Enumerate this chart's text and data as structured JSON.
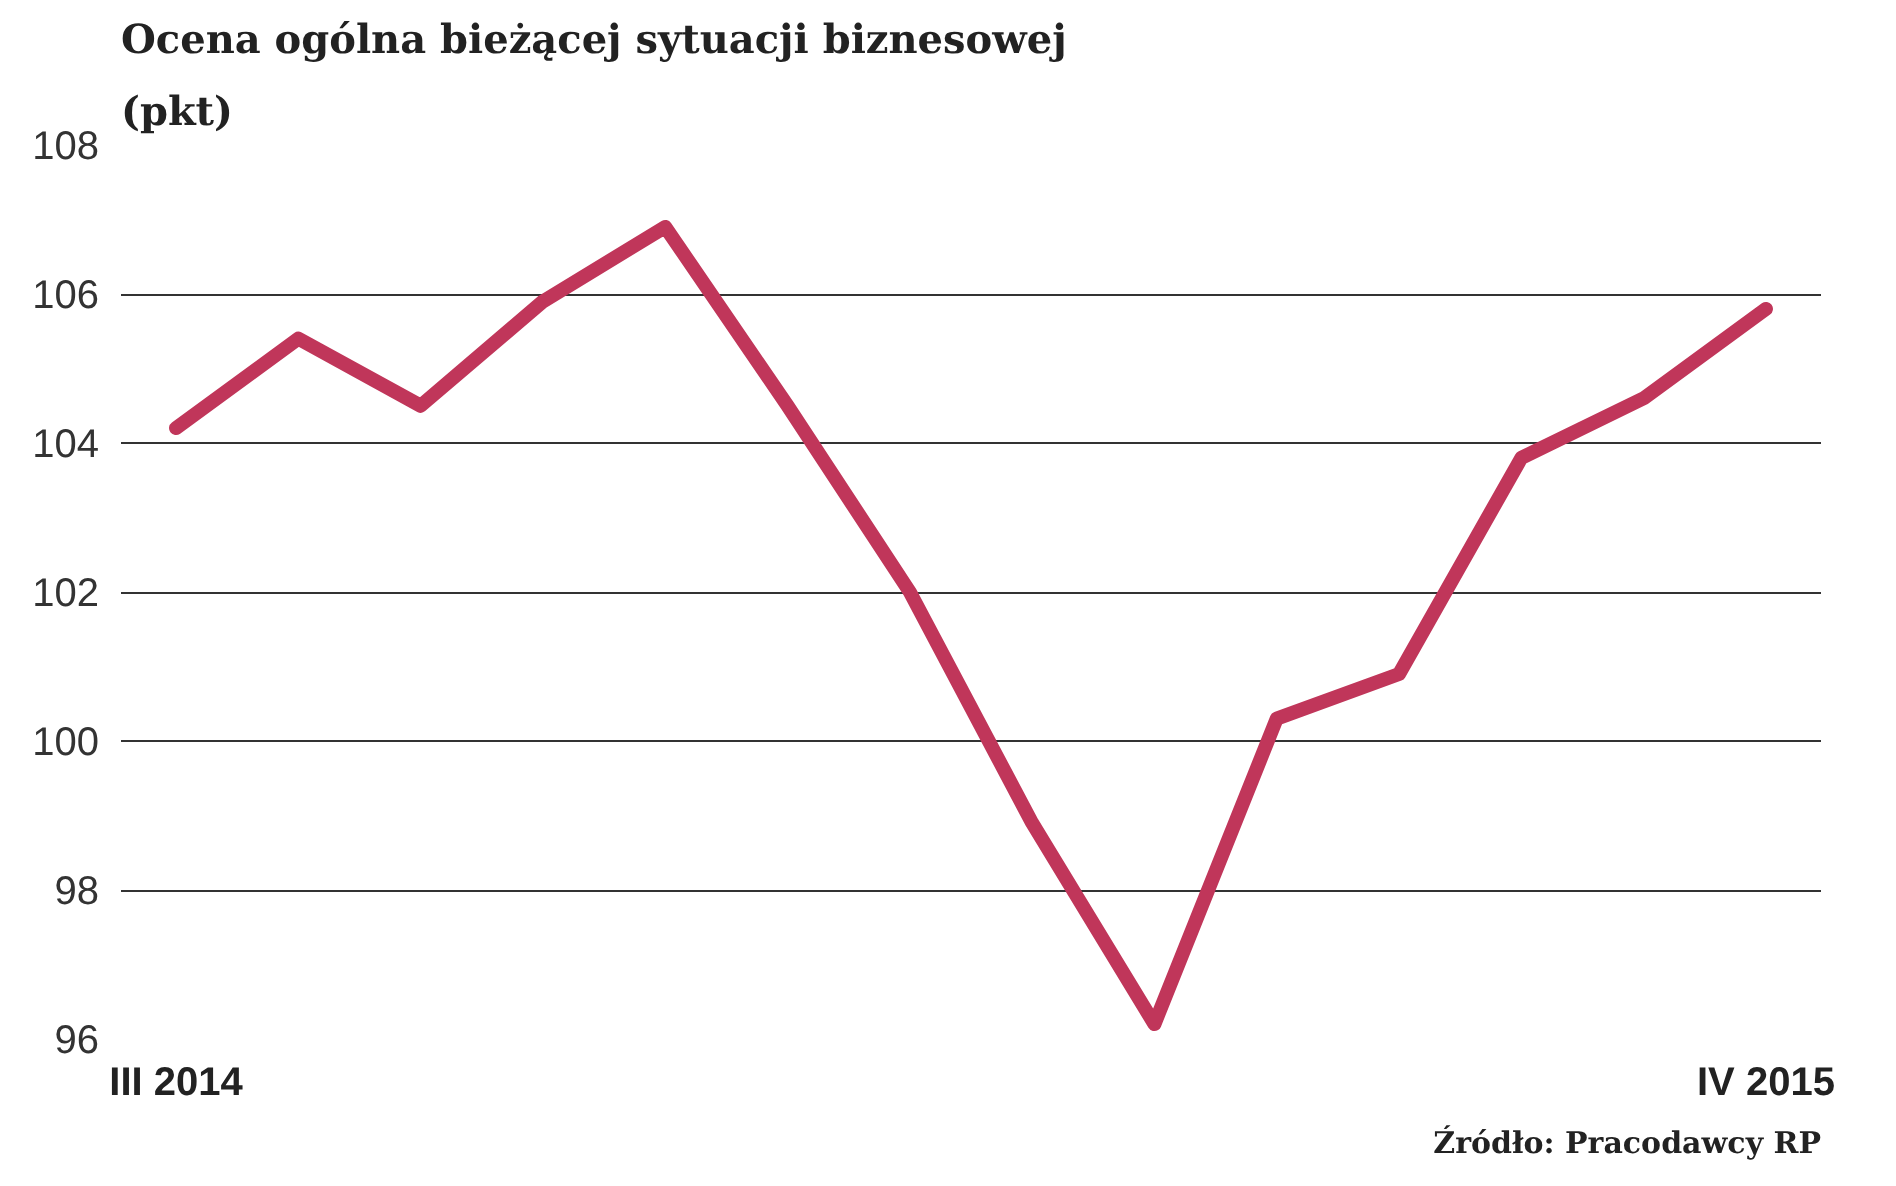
{
  "chart_data": {
    "type": "line",
    "title": "Ocena ogólna bieżącej sytuacji biznesowej",
    "subtitle": "(pkt)",
    "categories": [
      "III 2014",
      null,
      null,
      null,
      null,
      null,
      null,
      null,
      null,
      null,
      null,
      null,
      null,
      "IV 2015"
    ],
    "series": [
      {
        "color": "#c0365a",
        "values": [
          104.2,
          105.4,
          104.5,
          105.9,
          106.9,
          104.5,
          102.0,
          98.9,
          96.2,
          100.3,
          100.9,
          103.8,
          104.6,
          105.8
        ]
      }
    ],
    "ylim": [
      96,
      108
    ],
    "yticks": [
      96,
      98,
      100,
      102,
      104,
      106,
      108
    ],
    "grid": "y",
    "marker": "none",
    "line_style": "solid",
    "annotations": [
      "Źródło: Pracodawcy RP"
    ]
  }
}
